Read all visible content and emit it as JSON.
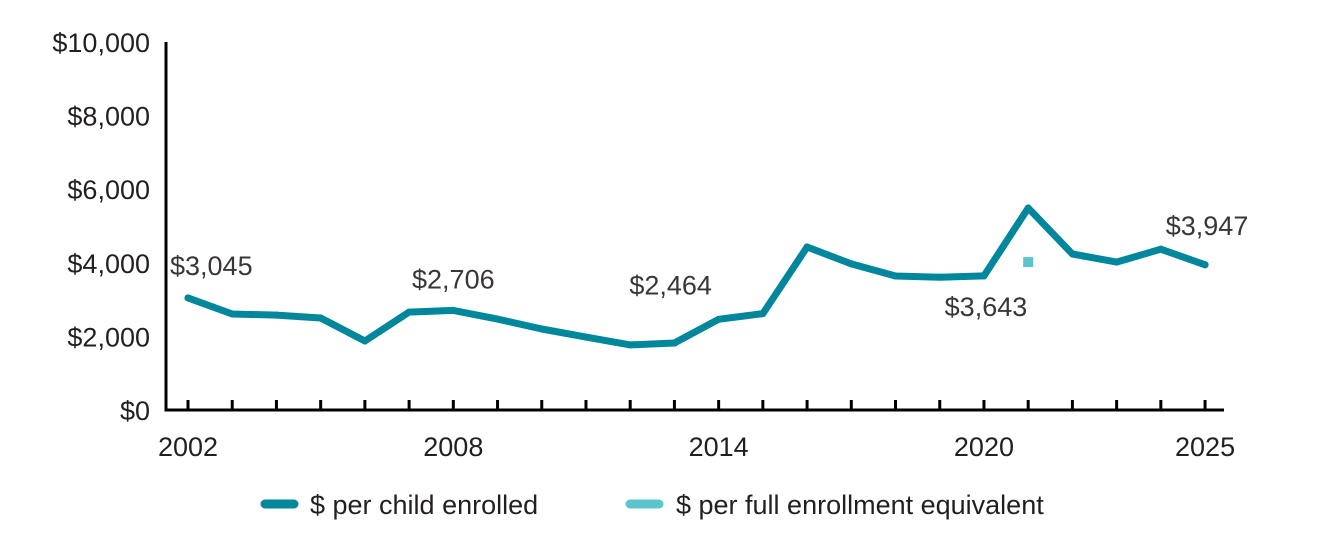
{
  "chart_data": {
    "type": "line",
    "title": "",
    "xlabel": "",
    "ylabel": "",
    "ylim": [
      0,
      10000
    ],
    "yticks": [
      0,
      2000,
      4000,
      6000,
      8000,
      10000
    ],
    "ytick_labels": [
      "$0",
      "$2,000",
      "$4,000",
      "$6,000",
      "$8,000",
      "$10,000"
    ],
    "xticks_labeled": [
      "2002",
      "2008",
      "2014",
      "2020",
      "2025"
    ],
    "grid": false,
    "legend_position": "bottom",
    "x": [
      2002,
      2003,
      2004,
      2005,
      2006,
      2007,
      2008,
      2009,
      2010,
      2011,
      2012,
      2013,
      2014,
      2015,
      2016,
      2017,
      2018,
      2019,
      2020,
      2021,
      2022,
      2023,
      2024,
      2025
    ],
    "series": [
      {
        "name": "$ per child enrolled",
        "color": "#00879b",
        "values": [
          3045,
          2610,
          2580,
          2500,
          1875,
          2660,
          2706,
          2470,
          2200,
          1980,
          1770,
          1820,
          2464,
          2620,
          4430,
          3970,
          3640,
          3610,
          3643,
          5490,
          4240,
          4020,
          4370,
          3947
        ]
      },
      {
        "name": "$ per full enrollment equivalent",
        "color": "#5bc4cf",
        "points": [
          {
            "x": 2021,
            "y": 4020
          }
        ]
      }
    ],
    "annotations": [
      {
        "x": 2002,
        "y": 3045,
        "text": "$3,045",
        "placement": "above"
      },
      {
        "x": 2008,
        "y": 2706,
        "text": "$2,706",
        "placement": "above"
      },
      {
        "x": 2014,
        "y": 2464,
        "text": "$2,464",
        "placement": "above-left"
      },
      {
        "x": 2020,
        "y": 3643,
        "text": "$3,643",
        "placement": "below"
      },
      {
        "x": 2025,
        "y": 3947,
        "text": "$3,947",
        "placement": "above"
      }
    ]
  }
}
